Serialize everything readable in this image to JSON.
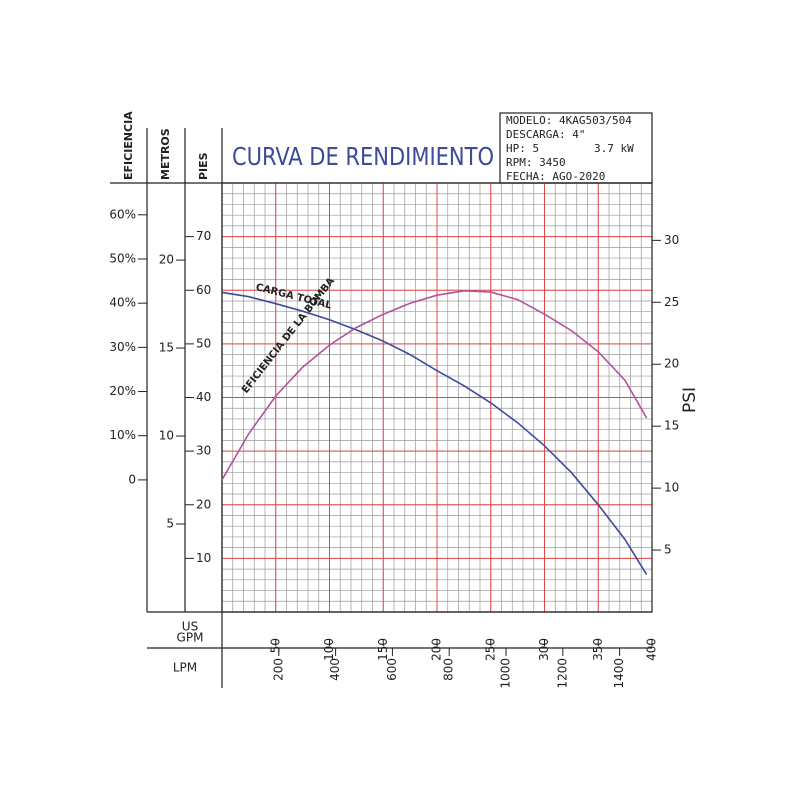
{
  "chart_data": {
    "type": "line",
    "title": "CURVA DE RENDIMIENTO",
    "info": [
      "MODELO: 4KAG503/504",
      "DESCARGA: 4\"",
      "HP: 5",
      "3.7 kW",
      "RPM: 3450",
      "FECHA: AGO-2020"
    ],
    "x_label": [
      "US",
      "GPM"
    ],
    "x2_label": "LPM",
    "xlim": [
      0,
      400
    ],
    "xticks": [
      50,
      100,
      150,
      200,
      250,
      300,
      350,
      400
    ],
    "x2lim": [
      0,
      1514
    ],
    "x2ticks": [
      200,
      400,
      600,
      800,
      1000,
      1200,
      1400
    ],
    "y_label": "PIES",
    "ylim": [
      0,
      80
    ],
    "yticks": [
      10,
      20,
      30,
      40,
      50,
      60,
      70
    ],
    "metros": {
      "label": "METROS",
      "lim": [
        0,
        24.38
      ],
      "ticks": [
        5,
        10,
        15,
        20
      ]
    },
    "eficiencia": {
      "label": "EFICIENCIA",
      "lim": [
        -29.9,
        67.2
      ],
      "ticks": [
        0,
        {
          "value": 10,
          "label": "10%"
        },
        {
          "value": 20,
          "label": "20%"
        },
        {
          "value": 30,
          "label": "30%"
        },
        {
          "value": 40,
          "label": "40%"
        },
        {
          "value": 50,
          "label": "50%"
        },
        {
          "value": 60,
          "label": "60%"
        }
      ]
    },
    "y2_label": "PSI",
    "y2lim": [
      0,
      34.63
    ],
    "y2ticks": [
      5,
      10,
      15,
      20,
      25,
      30
    ],
    "grid": true,
    "x": [
      0,
      25,
      50,
      75,
      100,
      125,
      150,
      175,
      200,
      225,
      250,
      275,
      300,
      325,
      350,
      375,
      395
    ],
    "series": [
      {
        "name": "CARGA TOTAL",
        "color": "#3d4b9c",
        "axis": "y",
        "values": [
          59.6,
          58.8,
          57.5,
          56.1,
          54.5,
          52.6,
          50.5,
          48,
          45,
          42.2,
          39,
          35.3,
          31,
          26,
          20,
          13.5,
          7
        ]
      },
      {
        "name": "EFICIENCIA DE LA BOMBA",
        "color": "#b4519c",
        "axis": "eficiencia",
        "values": [
          0,
          10.5,
          19,
          25.5,
          30.5,
          34.5,
          37.5,
          40,
          41.8,
          42.8,
          42.5,
          40.8,
          37.5,
          33.8,
          29,
          22.5,
          14
        ]
      }
    ]
  }
}
